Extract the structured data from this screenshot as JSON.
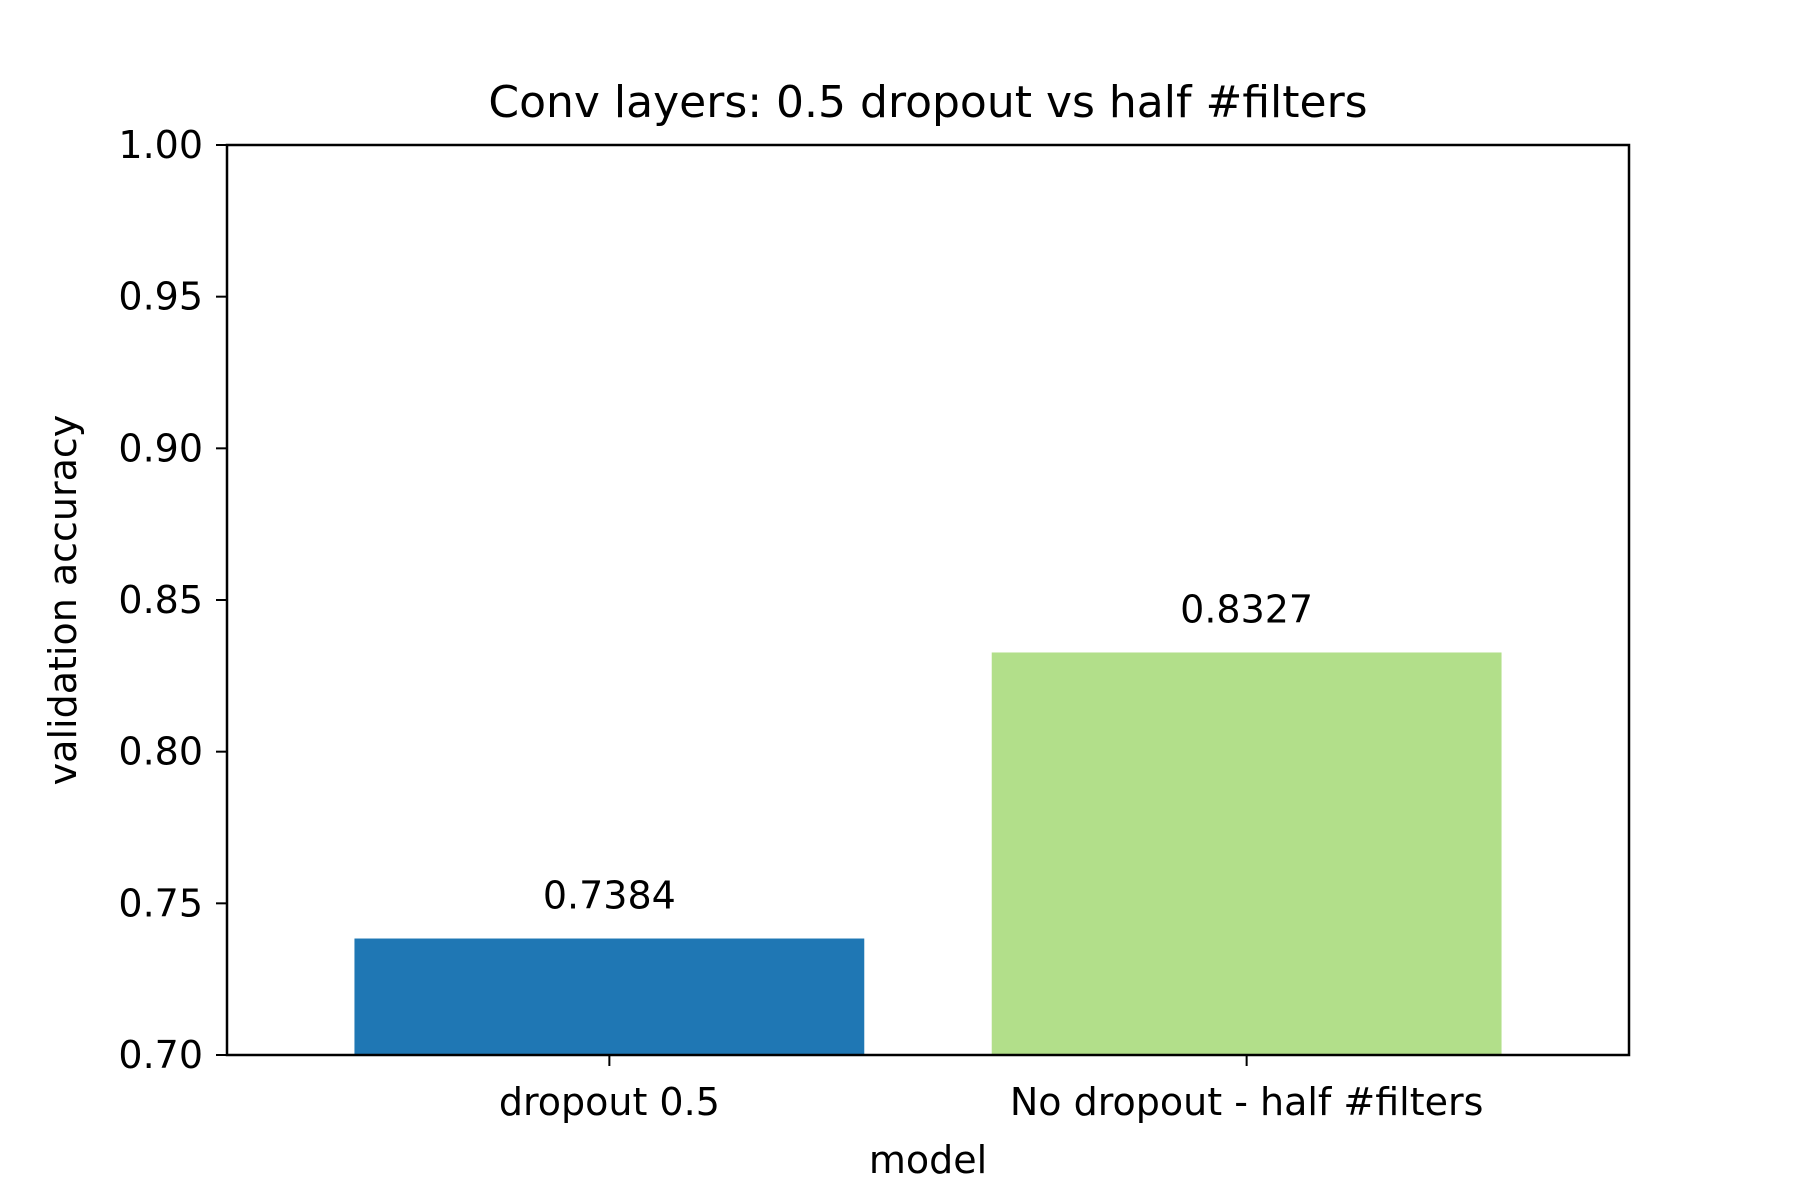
{
  "chart_data": {
    "type": "bar",
    "title": "Conv layers: 0.5 dropout vs half #filters",
    "xlabel": "model",
    "ylabel": "validation accuracy",
    "categories": [
      "dropout 0.5",
      "No dropout - half #filters"
    ],
    "values": [
      0.7384,
      0.8327
    ],
    "value_labels": [
      "0.7384",
      "0.8327"
    ],
    "colors": [
      "#1f77b4",
      "#b2df8a"
    ],
    "ylim": [
      0.7,
      1.0
    ],
    "yticks": [
      0.7,
      0.75,
      0.8,
      0.85,
      0.9,
      0.95,
      1.0
    ],
    "ytick_labels": [
      "0.70",
      "0.75",
      "0.80",
      "0.85",
      "0.90",
      "0.95",
      "1.00"
    ],
    "grid": false,
    "legend": false
  }
}
